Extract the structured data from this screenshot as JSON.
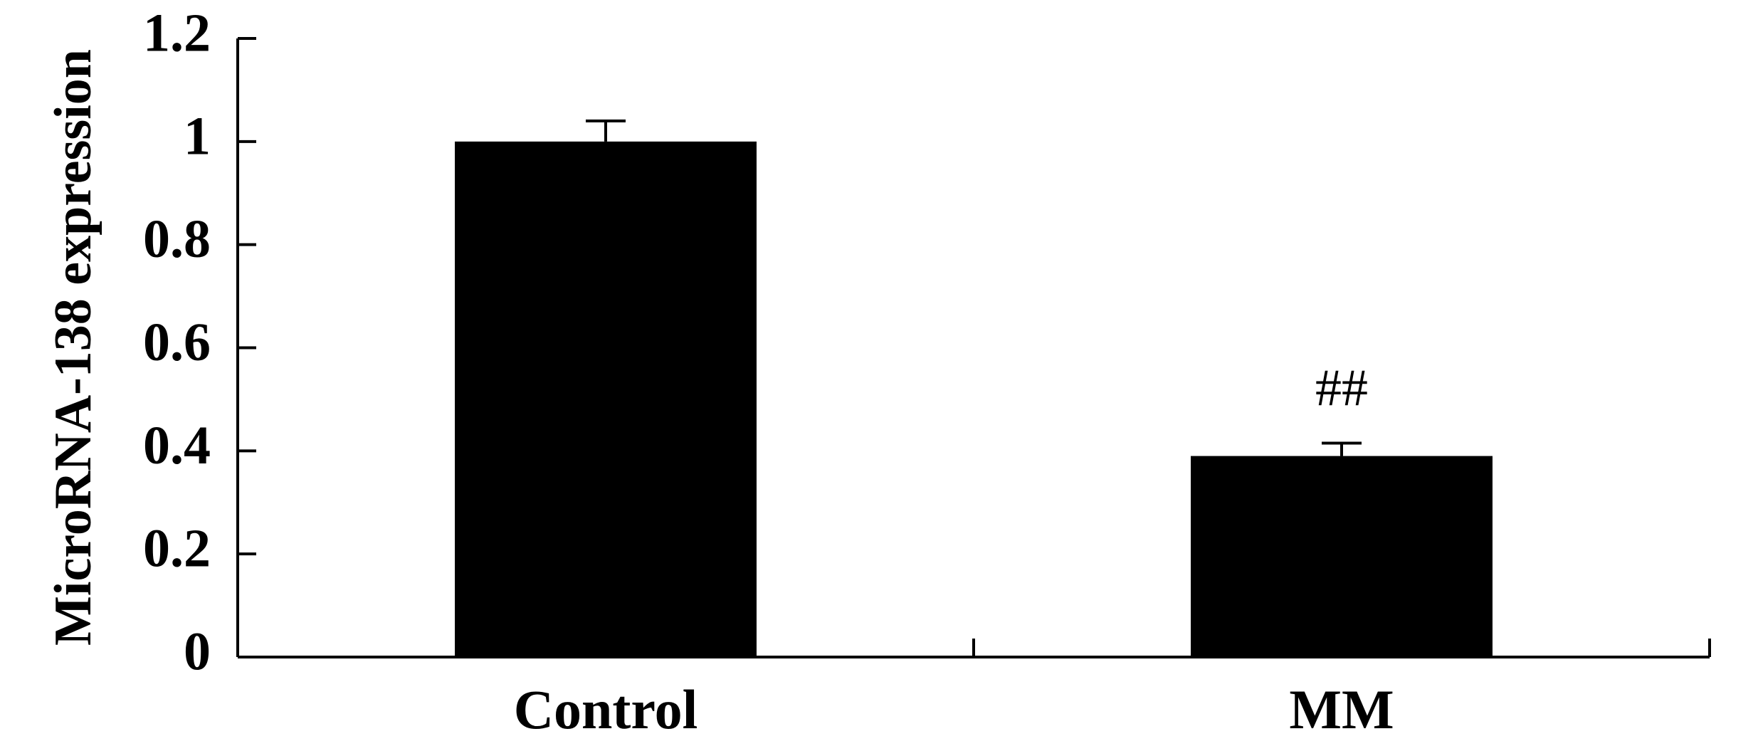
{
  "chart_data": {
    "type": "bar",
    "ylabel": "MicroRNA-138  expression",
    "categories": [
      "Control",
      "MM"
    ],
    "values": [
      1.0,
      0.39
    ],
    "errors": [
      0.04,
      0.025
    ],
    "annotations": [
      null,
      "##"
    ],
    "color": "#000000",
    "ylim": [
      0,
      1.2
    ],
    "yticks": [
      0,
      0.2,
      0.4,
      0.6,
      0.8,
      1,
      1.2
    ],
    "grid": false
  }
}
